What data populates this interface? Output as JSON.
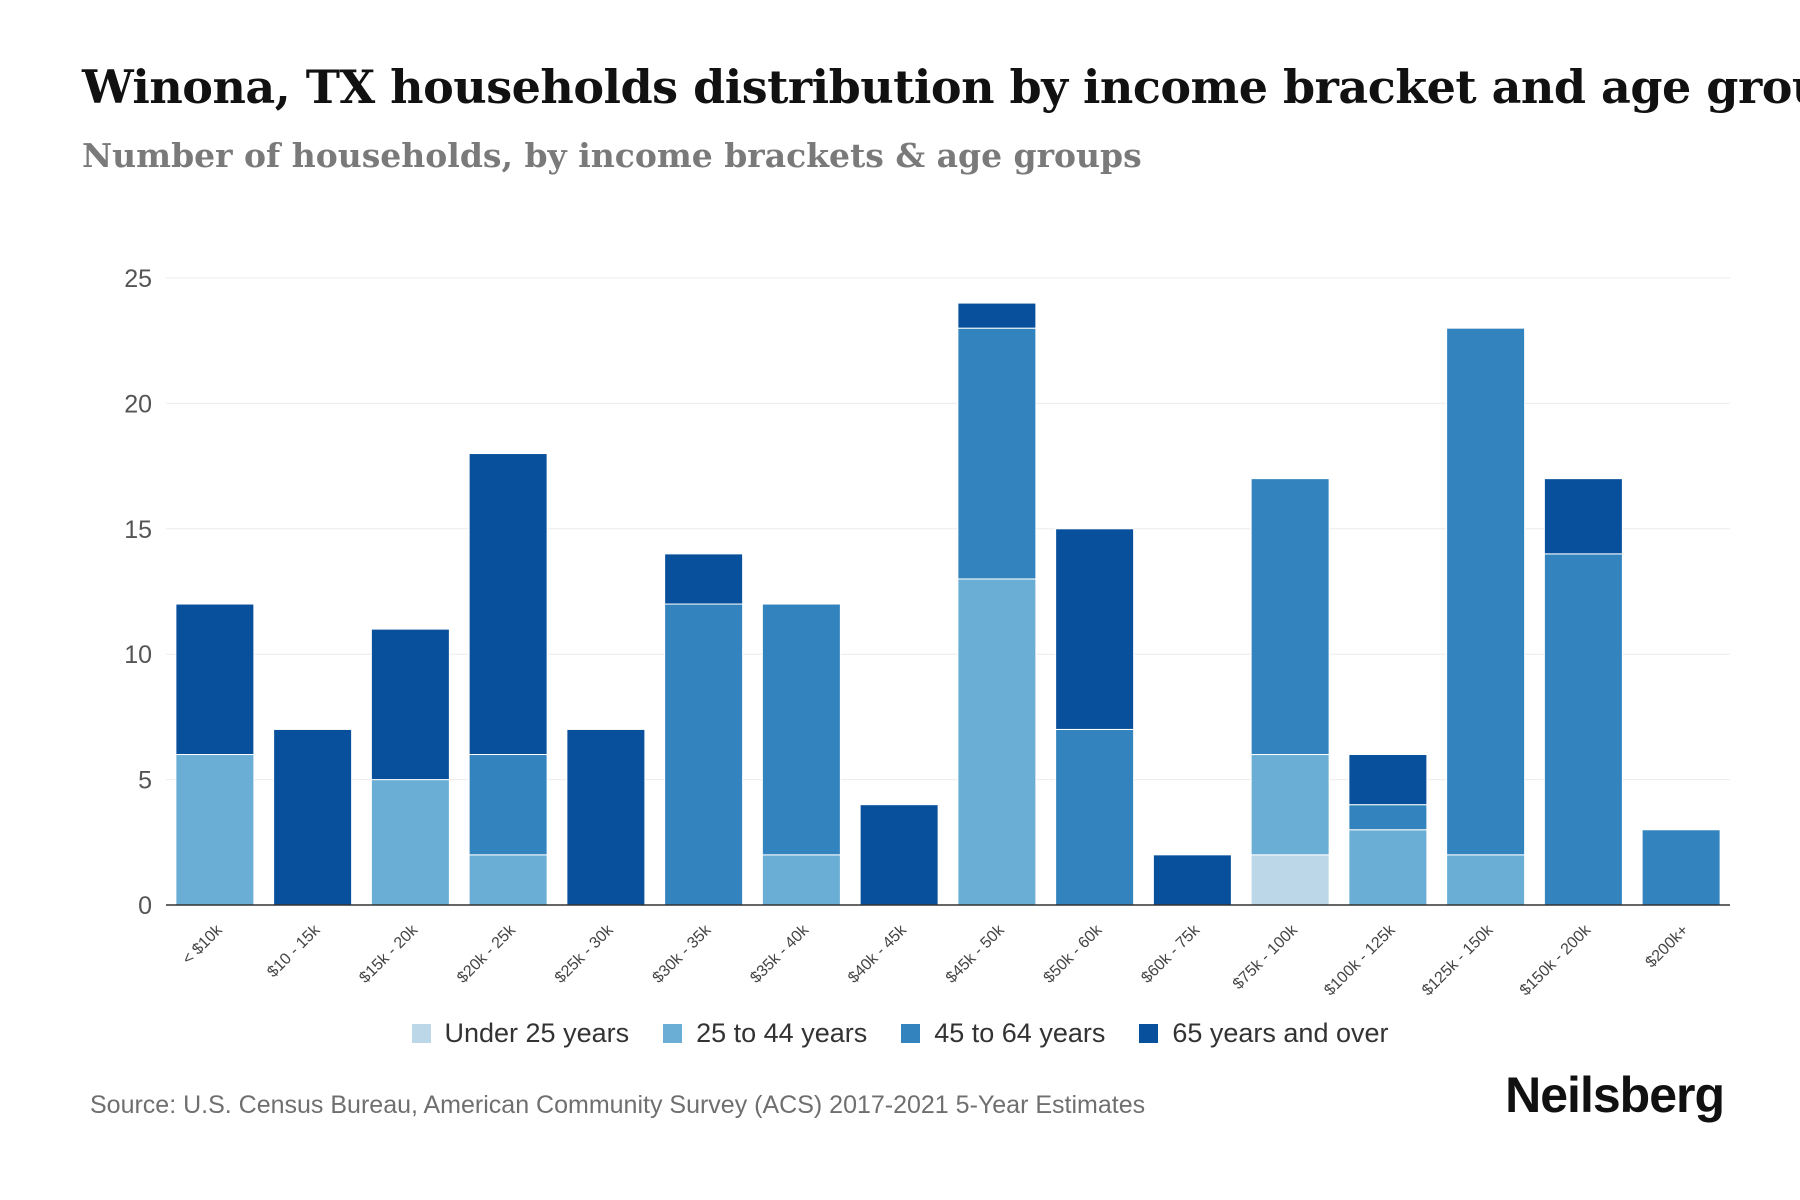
{
  "chart_data": {
    "type": "bar",
    "stacked": true,
    "title": "Winona, TX households distribution by income bracket and age group",
    "subtitle": "Number of households, by income brackets & age groups",
    "xlabel": "",
    "ylabel": "",
    "ylim": [
      0,
      25
    ],
    "yticks": [
      0,
      5,
      10,
      15,
      20,
      25
    ],
    "grid": true,
    "legend_position": "bottom",
    "categories": [
      "< $10k",
      "$10 - 15k",
      "$15k - 20k",
      "$20k - 25k",
      "$25k - 30k",
      "$30k - 35k",
      "$35k - 40k",
      "$40k - 45k",
      "$45k - 50k",
      "$50k - 60k",
      "$60k - 75k",
      "$75k - 100k",
      "$100k - 125k",
      "$125k - 150k",
      "$150k - 200k",
      "$200k+"
    ],
    "series": [
      {
        "name": "Under 25 years",
        "color": "#bcd7e8",
        "values": [
          0,
          0,
          0,
          0,
          0,
          0,
          0,
          0,
          0,
          0,
          0,
          2,
          0,
          0,
          0,
          0
        ]
      },
      {
        "name": "25 to 44 years",
        "color": "#6aadd5",
        "values": [
          6,
          0,
          5,
          2,
          0,
          0,
          2,
          0,
          13,
          0,
          0,
          4,
          3,
          2,
          0,
          0
        ]
      },
      {
        "name": "45 to 64 years",
        "color": "#3383be",
        "values": [
          0,
          0,
          0,
          4,
          0,
          12,
          10,
          0,
          10,
          7,
          0,
          11,
          1,
          21,
          14,
          3
        ]
      },
      {
        "name": "65 years and over",
        "color": "#08509b",
        "values": [
          6,
          7,
          6,
          12,
          7,
          2,
          0,
          4,
          1,
          8,
          2,
          0,
          2,
          0,
          3,
          0
        ]
      }
    ]
  },
  "source": "Source: U.S. Census Bureau, American Community Survey (ACS) 2017-2021 5-Year Estimates",
  "brand": "Neilsberg"
}
